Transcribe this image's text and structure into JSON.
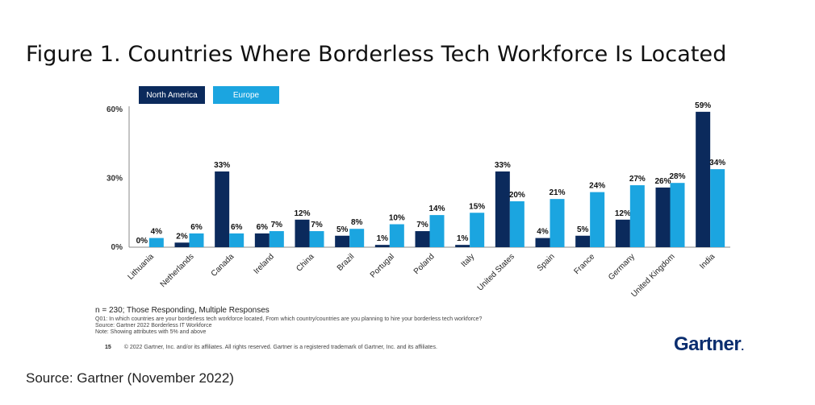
{
  "title": "Figure 1. Countries Where Borderless Tech Workforce Is Located",
  "colors": {
    "north_america": "#0b2a5c",
    "europe": "#1ba5e0"
  },
  "chart_data": {
    "type": "bar",
    "categories": [
      "Lithuania",
      "Netherlands",
      "Canada",
      "Ireland",
      "China",
      "Brazil",
      "Portugal",
      "Poland",
      "Italy",
      "United States",
      "Spain",
      "France",
      "Germany",
      "United Kingdom",
      "India"
    ],
    "series": [
      {
        "name": "North America",
        "values": [
          0,
          2,
          33,
          6,
          12,
          5,
          1,
          7,
          1,
          33,
          4,
          5,
          12,
          26,
          59
        ]
      },
      {
        "name": "Europe",
        "values": [
          4,
          6,
          6,
          7,
          7,
          8,
          10,
          14,
          15,
          20,
          21,
          24,
          27,
          28,
          34
        ]
      }
    ],
    "data_labels": {
      "North America": [
        "0%",
        "2%",
        "33%",
        "6%",
        "12%",
        "5%",
        "1%",
        "7%",
        "1%",
        "33%",
        "4%",
        "5%",
        "12%",
        "26%",
        "59%"
      ],
      "Europe": [
        "4%",
        "6%",
        "6%",
        "7%",
        "7%",
        "8%",
        "10%",
        "14%",
        "15%",
        "20%",
        "21%",
        "24%",
        "27%",
        "28%",
        "34%"
      ]
    },
    "y_ticks": [
      0,
      30,
      60
    ],
    "y_tick_labels": [
      "0%",
      "30%",
      "60%"
    ],
    "ylim": [
      0,
      60
    ],
    "legend": [
      "North America",
      "Europe"
    ],
    "legend_position": "top-left",
    "grid": false
  },
  "notes": {
    "main": "n = 230; Those Responding, Multiple Responses",
    "q": "Q01: In which countries are your borderless tech workforce located, From which country/countries are you planning to hire your borderless tech workforce?",
    "source": "Source: Gartner 2022 Borderless IT Workforce",
    "note": "Note: Showing attributes with 5% and above"
  },
  "footer": {
    "page": "15",
    "copyright": "© 2022 Gartner, Inc. and/or its affiliates. All rights reserved. Gartner is a registered trademark of Gartner, Inc. and its affiliates."
  },
  "brand": "Gartner",
  "source_caption": "Source: Gartner (November 2022)"
}
